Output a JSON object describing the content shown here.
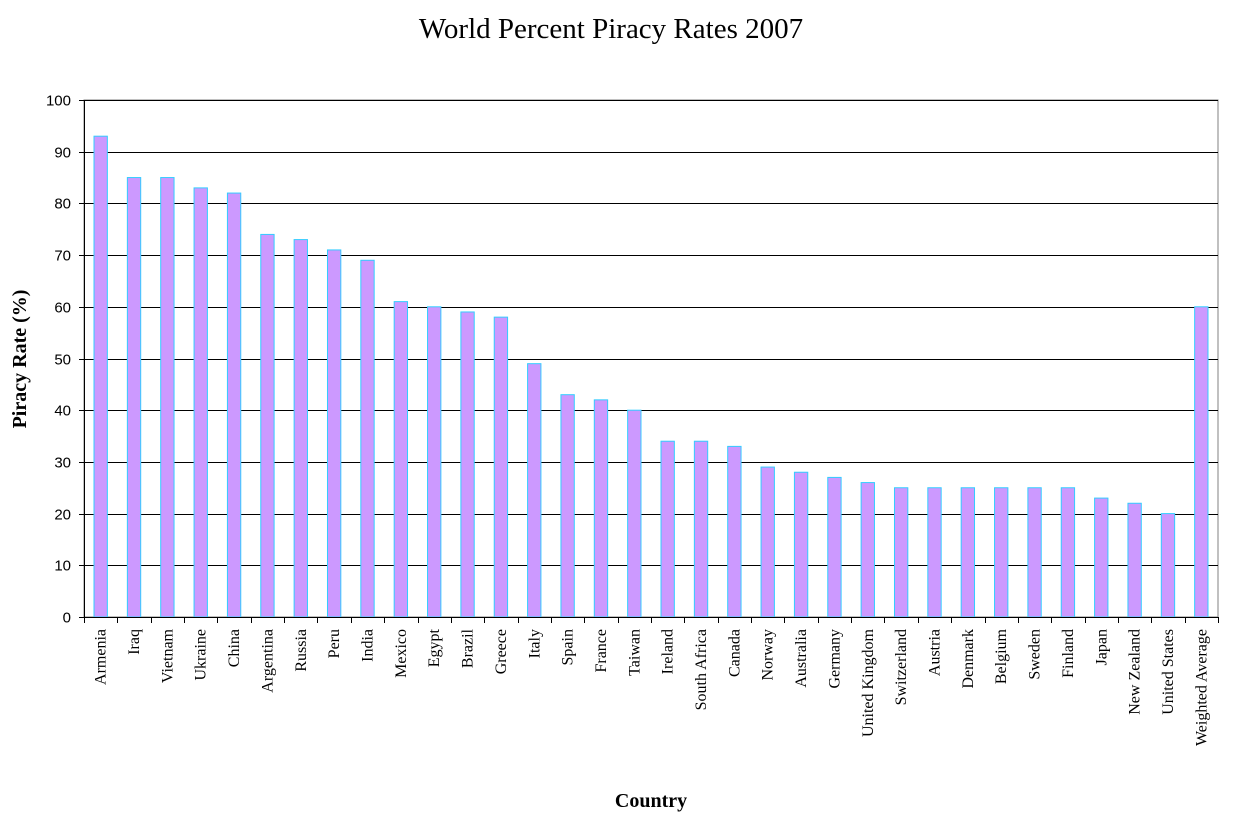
{
  "chart_data": {
    "type": "bar",
    "title": "World Percent Piracy Rates 2007",
    "xlabel": "Country",
    "ylabel": "Piracy Rate (%)",
    "ylim": [
      0,
      100
    ],
    "yticks": [
      0,
      10,
      20,
      30,
      40,
      50,
      60,
      70,
      80,
      90,
      100
    ],
    "grid": true,
    "legend": "none",
    "bar_color": "#cc99ff",
    "bar_edge_color": "#33ccff",
    "categories": [
      "Armenia",
      "Iraq",
      "Vietnam",
      "Ukraine",
      "China",
      "Argentina",
      "Russia",
      "Peru",
      "India",
      "Mexico",
      "Egypt",
      "Brazil",
      "Greece",
      "Italy",
      "Spain",
      "France",
      "Taiwan",
      "Ireland",
      "South Africa",
      "Canada",
      "Norway",
      "Australia",
      "Germany",
      "United Kingdom",
      "Switzerland",
      "Austria",
      "Denmark",
      "Belgium",
      "Sweden",
      "Finland",
      "Japan",
      "New Zealand",
      "United States",
      "Weighted Average"
    ],
    "values": [
      93,
      85,
      85,
      83,
      82,
      74,
      73,
      71,
      69,
      61,
      60,
      59,
      58,
      49,
      43,
      42,
      40,
      34,
      34,
      33,
      29,
      28,
      27,
      26,
      25,
      25,
      25,
      25,
      25,
      25,
      23,
      22,
      20,
      60
    ]
  }
}
